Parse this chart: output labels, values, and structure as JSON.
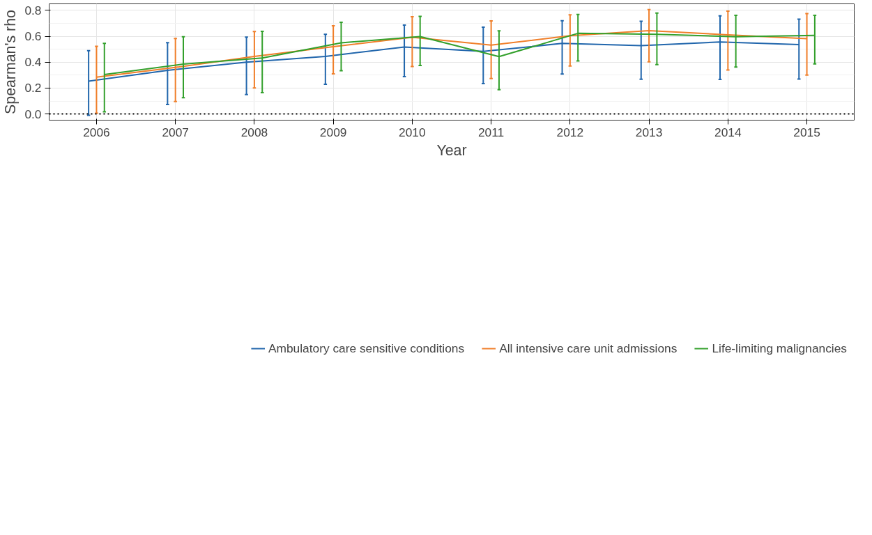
{
  "chart_data": {
    "type": "line",
    "xlabel": "Year",
    "ylabel": "Spearman's rho",
    "xlim": [
      2005.4,
      2015.6
    ],
    "xticks": [
      2006,
      2007,
      2008,
      2009,
      2010,
      2011,
      2012,
      2013,
      2014,
      2015
    ],
    "ylim": [
      -0.048,
      0.851
    ],
    "yticks": [
      {
        "value": 0,
        "label": "0.0"
      },
      0.2,
      0.4,
      0.6,
      0.8
    ],
    "grid": true,
    "legend": "bottom",
    "marker": "none",
    "line_style": "solid",
    "ref_lines": [
      {
        "axis": "y",
        "value": 0,
        "label": null,
        "color": "#000000",
        "line_style": "dotted"
      }
    ],
    "series": [
      {
        "name": "Ambulatory care sensitive conditions",
        "color": "#2166ac",
        "x": [
          2005.9,
          2006.9,
          2007.9,
          2008.9,
          2009.9,
          2010.9,
          2011.9,
          2012.9,
          2013.9,
          2014.9
        ],
        "values": [
          0.253,
          0.337,
          0.4,
          0.445,
          0.517,
          0.483,
          0.545,
          0.528,
          0.556,
          0.536
        ],
        "errors": [
          [
            -0.01,
            0.489
          ],
          [
            0.073,
            0.551
          ],
          [
            0.15,
            0.594
          ],
          [
            0.229,
            0.616
          ],
          [
            0.288,
            0.687
          ],
          [
            0.235,
            0.67
          ],
          [
            0.308,
            0.721
          ],
          [
            0.268,
            0.716
          ],
          [
            0.267,
            0.758
          ],
          [
            0.27,
            0.733
          ]
        ]
      },
      {
        "name": "All intensive care unit admissions",
        "color": "#f07f2a",
        "x": [
          2006,
          2007,
          2008,
          2009,
          2010,
          2011,
          2012,
          2013,
          2014,
          2015
        ],
        "values": [
          0.285,
          0.36,
          0.445,
          0.52,
          0.592,
          0.532,
          0.605,
          0.644,
          0.612,
          0.582
        ],
        "errors": [
          [
            0.006,
            0.522
          ],
          [
            0.096,
            0.583
          ],
          [
            0.201,
            0.637
          ],
          [
            0.31,
            0.682
          ],
          [
            0.366,
            0.752
          ],
          [
            0.274,
            0.719
          ],
          [
            0.37,
            0.766
          ],
          [
            0.403,
            0.806
          ],
          [
            0.34,
            0.795
          ],
          [
            0.3,
            0.776
          ]
        ]
      },
      {
        "name": "Life-limiting malignancies",
        "color": "#33a02c",
        "x": [
          2006.1,
          2007.1,
          2008.1,
          2009.1,
          2010.1,
          2011.1,
          2012.1,
          2013.1,
          2014.1,
          2015.1
        ],
        "values": [
          0.305,
          0.385,
          0.432,
          0.55,
          0.598,
          0.443,
          0.623,
          0.616,
          0.597,
          0.607
        ],
        "errors": [
          [
            0.017,
            0.546
          ],
          [
            0.126,
            0.597
          ],
          [
            0.165,
            0.639
          ],
          [
            0.334,
            0.709
          ],
          [
            0.375,
            0.754
          ],
          [
            0.187,
            0.643
          ],
          [
            0.41,
            0.769
          ],
          [
            0.381,
            0.779
          ],
          [
            0.362,
            0.762
          ],
          [
            0.387,
            0.762
          ]
        ]
      }
    ]
  }
}
